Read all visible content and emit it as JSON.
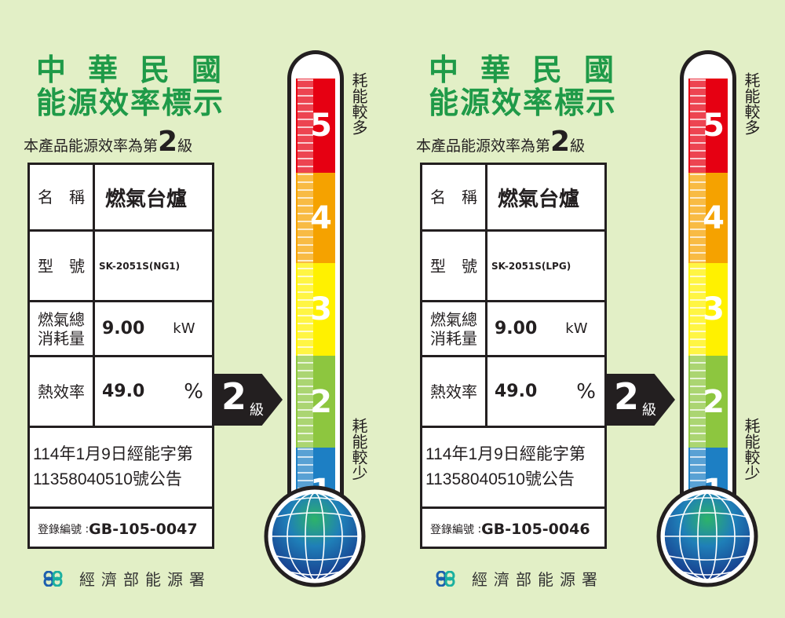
{
  "labels": [
    {
      "title_line1": "中華民國",
      "title_line2": "能源效率標示",
      "grade_prefix": "本產品能源效率為第",
      "grade": "2",
      "grade_suffix": "級",
      "rows": {
        "name_label": "名　稱",
        "name_value": "燃氣台爐",
        "model_label": "型　號",
        "model_value": "SK-2051S(NG1)",
        "consumption_label": "燃氣總消耗量",
        "consumption_value": "9.00",
        "consumption_unit": "kW",
        "efficiency_label": "熱效率",
        "efficiency_value": "49.0",
        "efficiency_unit": "%",
        "announcement": "114年1月9日經能字第11358040510號公告",
        "registration_label": "登錄編號",
        "registration_value": "GB-105-0047"
      },
      "arrow_grade": "2",
      "arrow_unit": "級",
      "scale": [
        "5",
        "4",
        "3",
        "2",
        "1"
      ],
      "top_caption": "耗能較多",
      "bottom_caption": "耗能較少",
      "agency": "經濟部能源署"
    },
    {
      "title_line1": "中華民國",
      "title_line2": "能源效率標示",
      "grade_prefix": "本產品能源效率為第",
      "grade": "2",
      "grade_suffix": "級",
      "rows": {
        "name_label": "名　稱",
        "name_value": "燃氣台爐",
        "model_label": "型　號",
        "model_value": "SK-2051S(LPG)",
        "consumption_label": "燃氣總消耗量",
        "consumption_value": "9.00",
        "consumption_unit": "kW",
        "efficiency_label": "熱效率",
        "efficiency_value": "49.0",
        "efficiency_unit": "%",
        "announcement": "114年1月9日經能字第11358040510號公告",
        "registration_label": "登錄編號",
        "registration_value": "GB-105-0046"
      },
      "arrow_grade": "2",
      "arrow_unit": "級",
      "scale": [
        "5",
        "4",
        "3",
        "2",
        "1"
      ],
      "top_caption": "耗能較多",
      "bottom_caption": "耗能較少",
      "agency": "經濟部能源署"
    }
  ],
  "colors": {
    "background": "#e2efc6",
    "title": "#1f9a48",
    "level5": "#e60012",
    "level4": "#f5a200",
    "level3": "#fff100",
    "level2": "#8dc63f",
    "level1": "#1d7fc4"
  }
}
